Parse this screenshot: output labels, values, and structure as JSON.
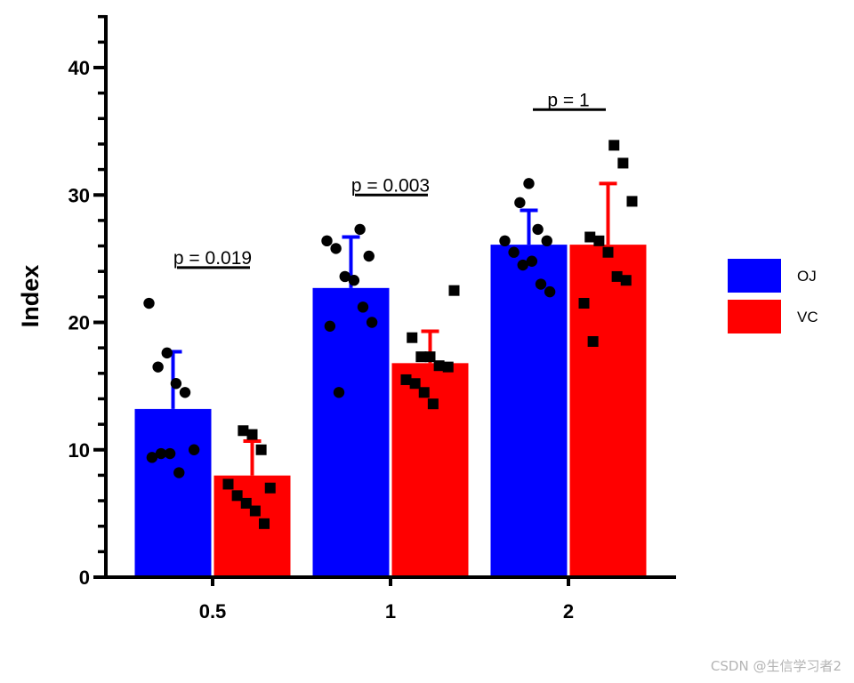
{
  "colors": {
    "OJ": "#0000ff",
    "VC": "#ff0000",
    "axis": "#000000",
    "points": "#000000"
  },
  "watermark": "CSDN @生信学习者2",
  "chart_data": {
    "type": "bar",
    "ylabel": "Index",
    "xlabel": "",
    "ylim": [
      0,
      44
    ],
    "yticks": [
      0,
      10,
      20,
      30,
      40
    ],
    "categories": [
      "0.5",
      "1",
      "2"
    ],
    "legend": {
      "position": "right",
      "entries": [
        "OJ",
        "VC"
      ]
    },
    "series": [
      {
        "name": "OJ",
        "color": "#0000ff",
        "marker": "circle",
        "values": [
          13.2,
          22.7,
          26.1
        ],
        "errors": [
          4.5,
          4.0,
          2.7
        ],
        "points": [
          [
            21.5,
            16.5,
            17.6,
            15.2,
            14.5,
            10.0,
            9.4,
            9.7,
            9.7,
            8.2
          ],
          [
            27.3,
            25.2,
            26.4,
            25.8,
            23.6,
            23.3,
            21.2,
            20.0,
            19.7,
            14.5
          ],
          [
            29.4,
            30.9,
            27.3,
            26.4,
            26.4,
            25.5,
            24.5,
            24.8,
            23.0,
            22.4
          ]
        ]
      },
      {
        "name": "VC",
        "color": "#ff0000",
        "marker": "square",
        "values": [
          7.98,
          16.8,
          26.1
        ],
        "errors": [
          2.7,
          2.5,
          4.8
        ],
        "points": [
          [
            11.5,
            11.2,
            10.0,
            7.0,
            7.3,
            6.4,
            5.8,
            5.2,
            4.2
          ],
          [
            22.5,
            18.8,
            17.3,
            17.3,
            16.6,
            16.5,
            15.5,
            15.2,
            14.5,
            13.6
          ],
          [
            33.9,
            32.5,
            29.5,
            26.7,
            26.4,
            25.5,
            23.6,
            23.3,
            21.5,
            18.5
          ]
        ]
      }
    ],
    "annotations": [
      {
        "category": "0.5",
        "text": "p = 0.019",
        "y": 24.3
      },
      {
        "category": "1",
        "text": "p = 0.003",
        "y": 30.0
      },
      {
        "category": "2",
        "text": "p = 1",
        "y": 36.7
      }
    ]
  }
}
